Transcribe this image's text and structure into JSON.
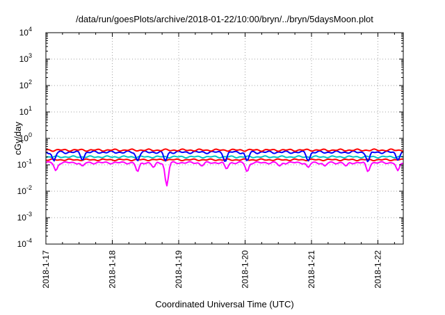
{
  "chart_data": {
    "type": "line",
    "title": "/data/run/goesPlots/archive/2018-01-22/10:00/bryn/../bryn/5daysMoon.plot",
    "xlabel": "Coordinated Universal Time (UTC)",
    "ylabel": "cGy/day",
    "x_ticks": [
      "2018-1-17",
      "2018-1-18",
      "2018-1-19",
      "2018-1-20",
      "2018-1-21",
      "2018-1-22"
    ],
    "xlim": [
      "2018-01-17T00:00",
      "2018-01-22T10:00"
    ],
    "y_scale": "log",
    "ylim": [
      0.0001,
      10000
    ],
    "y_ticks": [
      {
        "value": 0.0001,
        "base": "10",
        "exp": "-4"
      },
      {
        "value": 0.001,
        "base": "10",
        "exp": "-3"
      },
      {
        "value": 0.01,
        "base": "10",
        "exp": "-2"
      },
      {
        "value": 0.1,
        "base": "10",
        "exp": "-1"
      },
      {
        "value": 1,
        "base": "10",
        "exp": "0"
      },
      {
        "value": 10,
        "base": "10",
        "exp": "1"
      },
      {
        "value": 100,
        "base": "10",
        "exp": "2"
      },
      {
        "value": 1000,
        "base": "10",
        "exp": "3"
      },
      {
        "value": 10000,
        "base": "10",
        "exp": "4"
      }
    ],
    "grid": true,
    "series": [
      {
        "color": "#ff00ff",
        "base": 0.12,
        "dips": [
          {
            "day": 0.15,
            "value": 0.06
          },
          {
            "day": 0.55,
            "value": 0.09
          },
          {
            "day": 1.38,
            "value": 0.055
          },
          {
            "day": 1.62,
            "value": 0.08
          },
          {
            "day": 1.82,
            "value": 0.016
          },
          {
            "day": 2.35,
            "value": 0.09
          },
          {
            "day": 2.72,
            "value": 0.07
          },
          {
            "day": 3.03,
            "value": 0.055
          },
          {
            "day": 3.52,
            "value": 0.09
          },
          {
            "day": 3.95,
            "value": 0.08
          },
          {
            "day": 4.2,
            "value": 0.09
          },
          {
            "day": 4.52,
            "value": 0.09
          },
          {
            "day": 4.85,
            "value": 0.055
          },
          {
            "day": 5.3,
            "value": 0.06
          }
        ]
      },
      {
        "color": "#ff0000",
        "base": 0.155,
        "dips": []
      },
      {
        "color": "#00c4c4",
        "base": 0.2,
        "dips": []
      },
      {
        "color": "#0000ff",
        "base": 0.3,
        "dips": [
          {
            "day": 0.12,
            "value": 0.14
          },
          {
            "day": 0.55,
            "value": 0.15
          },
          {
            "day": 1.38,
            "value": 0.14
          },
          {
            "day": 1.8,
            "value": 0.14
          },
          {
            "day": 2.7,
            "value": 0.13
          },
          {
            "day": 3.03,
            "value": 0.14
          },
          {
            "day": 3.95,
            "value": 0.14
          },
          {
            "day": 4.85,
            "value": 0.13
          },
          {
            "day": 5.3,
            "value": 0.15
          }
        ]
      },
      {
        "color": "#ff0000",
        "base": 0.36,
        "dips": []
      }
    ]
  }
}
